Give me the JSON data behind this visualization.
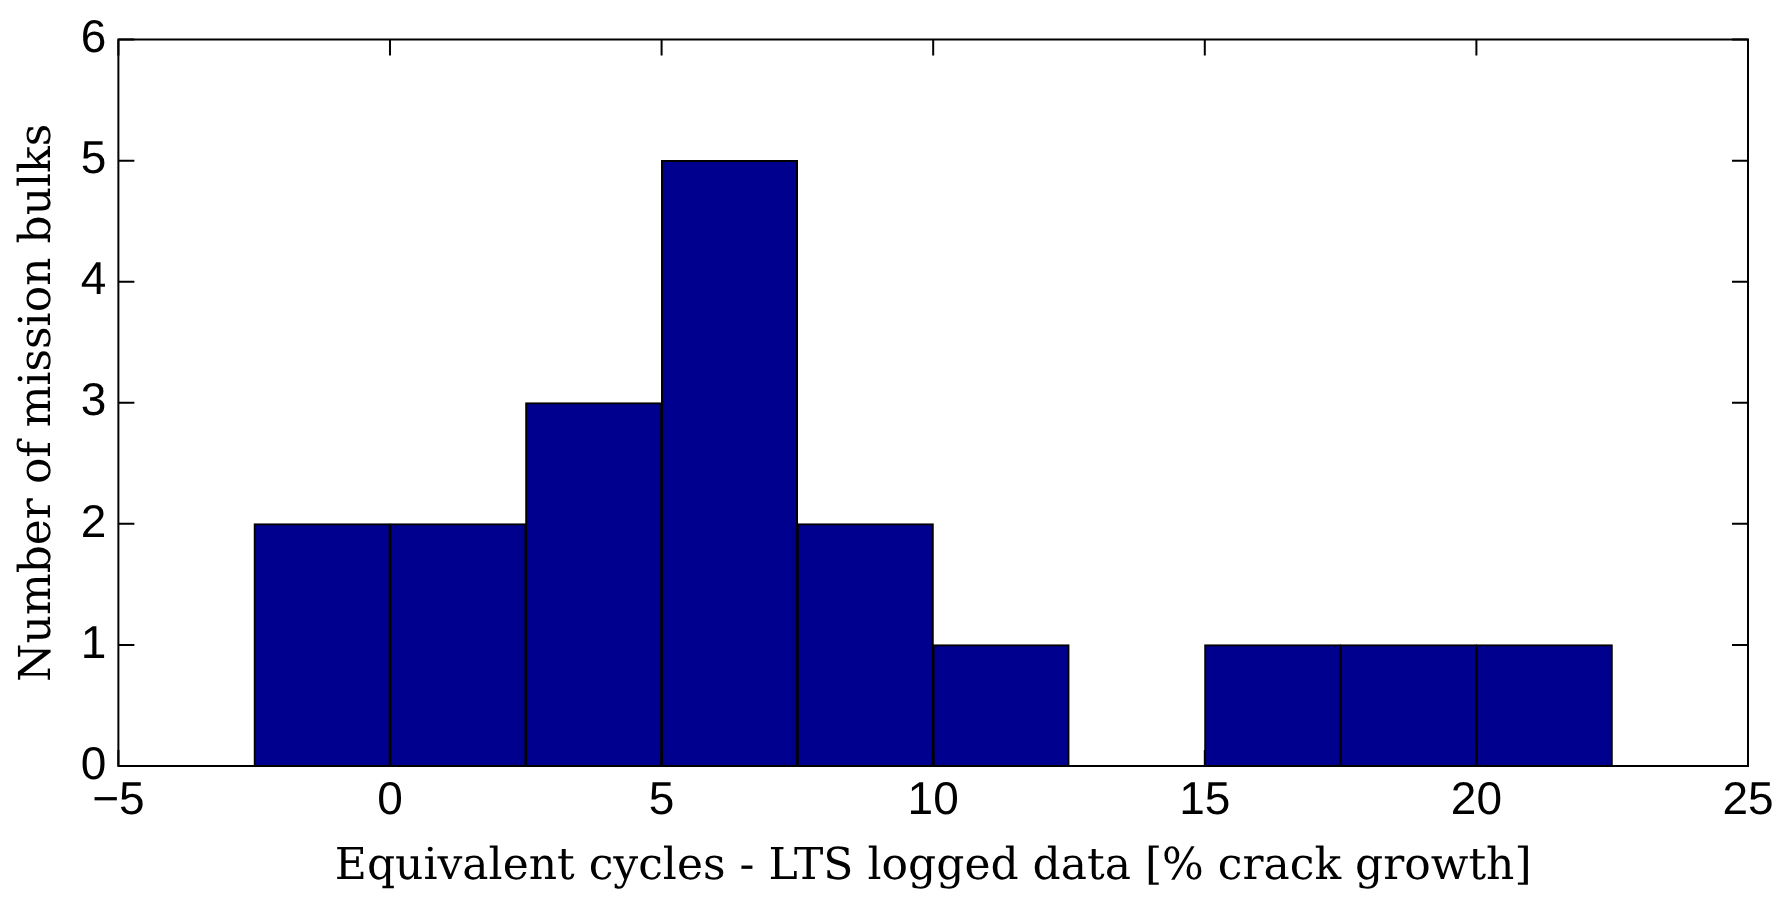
{
  "chart_data": {
    "type": "histogram",
    "xlabel": "Equivalent cycles - LTS logged data [% crack growth]",
    "ylabel": "Number of mission bulks",
    "bins": [
      -2.5,
      0,
      2.5,
      5,
      7.5,
      10,
      12.5,
      15,
      17.5,
      20,
      22.5
    ],
    "values": [
      2,
      2,
      3,
      5,
      2,
      1,
      0,
      1,
      1,
      1
    ],
    "color": "#00008f",
    "xlim": [
      -5,
      25
    ],
    "xticks": [
      -5,
      0,
      5,
      10,
      15,
      20,
      25
    ],
    "ylim": [
      0,
      6
    ],
    "yticks": [
      0,
      1,
      2,
      3,
      4,
      5,
      6
    ],
    "grid": false,
    "legend": false
  }
}
